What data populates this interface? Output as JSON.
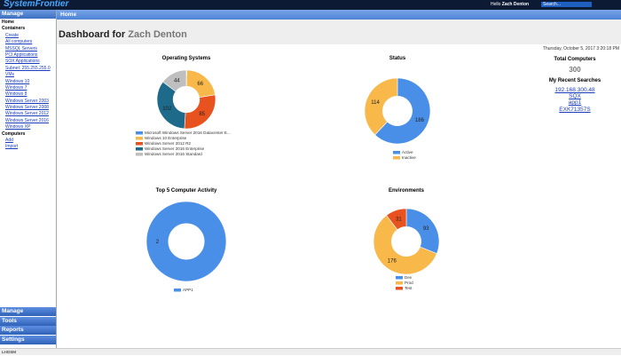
{
  "header": {
    "logo": "SystemFrontier",
    "greeting": "Hello",
    "user": "Zach Denton",
    "search": "Search..."
  },
  "sidebar": {
    "title": "Manage",
    "home": "Home",
    "sections": [
      {
        "title": "Containers",
        "items": [
          "Create",
          "All computers",
          "MSSQL Servers",
          "PCI Applications",
          "SOX Applications",
          "Subnet: 255.255.255.0",
          "VMs",
          "Windows 10",
          "Windows 7",
          "Windows 8",
          "Windows Server 2003",
          "Windows Server 2008",
          "Windows Server 2012",
          "Windows Server 2016",
          "Windows XP"
        ]
      },
      {
        "title": "Computers",
        "items": [
          "Add",
          "Import"
        ]
      }
    ],
    "footer": [
      "Manage",
      "Tools",
      "Reports",
      "Settings"
    ]
  },
  "breadcrumb": "Home",
  "page": {
    "title": "Dashboard for",
    "user": "Zach Denton",
    "timestamp": "Thursday, October 5, 2017 3:20:18 PM"
  },
  "summary": {
    "total_title": "Total Computers",
    "total": 300,
    "searches_title": "My Recent Searches",
    "searches": [
      "192.168.300.48",
      "SQX",
      "app1",
      "EXK71357S"
    ]
  },
  "chart_data": [
    {
      "type": "pie",
      "title": "Operating Systems",
      "categories": [
        "Microsoft Windows Server 2016 Datacenter E...",
        "Windows 10 Enterprise",
        "Windows Server 2012 R2",
        "Windows Server 2016 Enterprise",
        "Windows Server 2016 Standard"
      ],
      "values": [
        1,
        66,
        85,
        102,
        44
      ],
      "colors": [
        "#4a8fe7",
        "#f9b84a",
        "#e8521e",
        "#1d6a8a",
        "#bfbfbf"
      ]
    },
    {
      "type": "pie",
      "title": "Status",
      "categories": [
        "Active",
        "Inactive"
      ],
      "values": [
        186,
        114
      ],
      "colors": [
        "#4a8fe7",
        "#f9b84a"
      ]
    },
    {
      "type": "pie",
      "title": "Top 5 Computer Activity",
      "categories": [
        "APP1"
      ],
      "values": [
        2
      ],
      "colors": [
        "#4a8fe7"
      ]
    },
    {
      "type": "pie",
      "title": "Environments",
      "categories": [
        "Dev",
        "Prod",
        "Test"
      ],
      "values": [
        93,
        176,
        31
      ],
      "colors": [
        "#4a8fe7",
        "#f9b84a",
        "#e8521e"
      ]
    }
  ],
  "status_bar": "LHGSM"
}
